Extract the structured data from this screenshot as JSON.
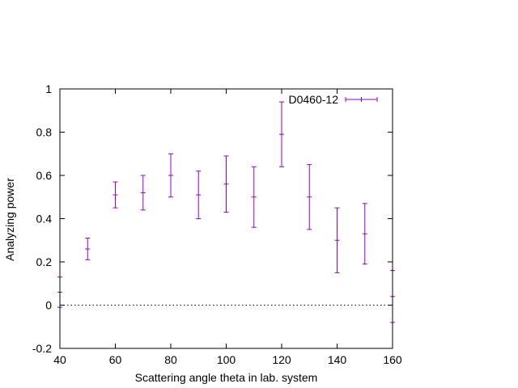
{
  "chart_data": {
    "type": "scatter",
    "title": "",
    "xlabel": "Scattering angle theta in lab. system",
    "ylabel": "Analyzing power",
    "xlim": [
      40,
      160
    ],
    "ylim": [
      -0.2,
      1
    ],
    "xticks": [
      40,
      60,
      80,
      100,
      120,
      140,
      160
    ],
    "yticks": [
      -0.2,
      0,
      0.2,
      0.4,
      0.6,
      0.8,
      1
    ],
    "xtick_labels": [
      "40",
      "60",
      "80",
      "100",
      "120",
      "140",
      "160"
    ],
    "ytick_labels": [
      "-0.2",
      "0",
      "0.2",
      "0.4",
      "0.6",
      "0.8",
      "1"
    ],
    "zero_line": true,
    "grid": false,
    "legend_position": "top-right",
    "series": [
      {
        "name": "D0460-12",
        "color": "#9400d3",
        "style": "errorbars",
        "points": [
          {
            "x": 40,
            "y": 0.06,
            "err": 0.07
          },
          {
            "x": 50,
            "y": 0.26,
            "err": 0.05
          },
          {
            "x": 60,
            "y": 0.51,
            "err": 0.06
          },
          {
            "x": 70,
            "y": 0.52,
            "err": 0.08
          },
          {
            "x": 80,
            "y": 0.6,
            "err": 0.1
          },
          {
            "x": 90,
            "y": 0.51,
            "err": 0.11
          },
          {
            "x": 100,
            "y": 0.56,
            "err": 0.13
          },
          {
            "x": 110,
            "y": 0.5,
            "err": 0.14
          },
          {
            "x": 120,
            "y": 0.79,
            "err": 0.15
          },
          {
            "x": 130,
            "y": 0.5,
            "err": 0.15
          },
          {
            "x": 140,
            "y": 0.3,
            "err": 0.15
          },
          {
            "x": 150,
            "y": 0.33,
            "err": 0.14
          },
          {
            "x": 160,
            "y": 0.04,
            "err": 0.12
          }
        ]
      }
    ]
  }
}
